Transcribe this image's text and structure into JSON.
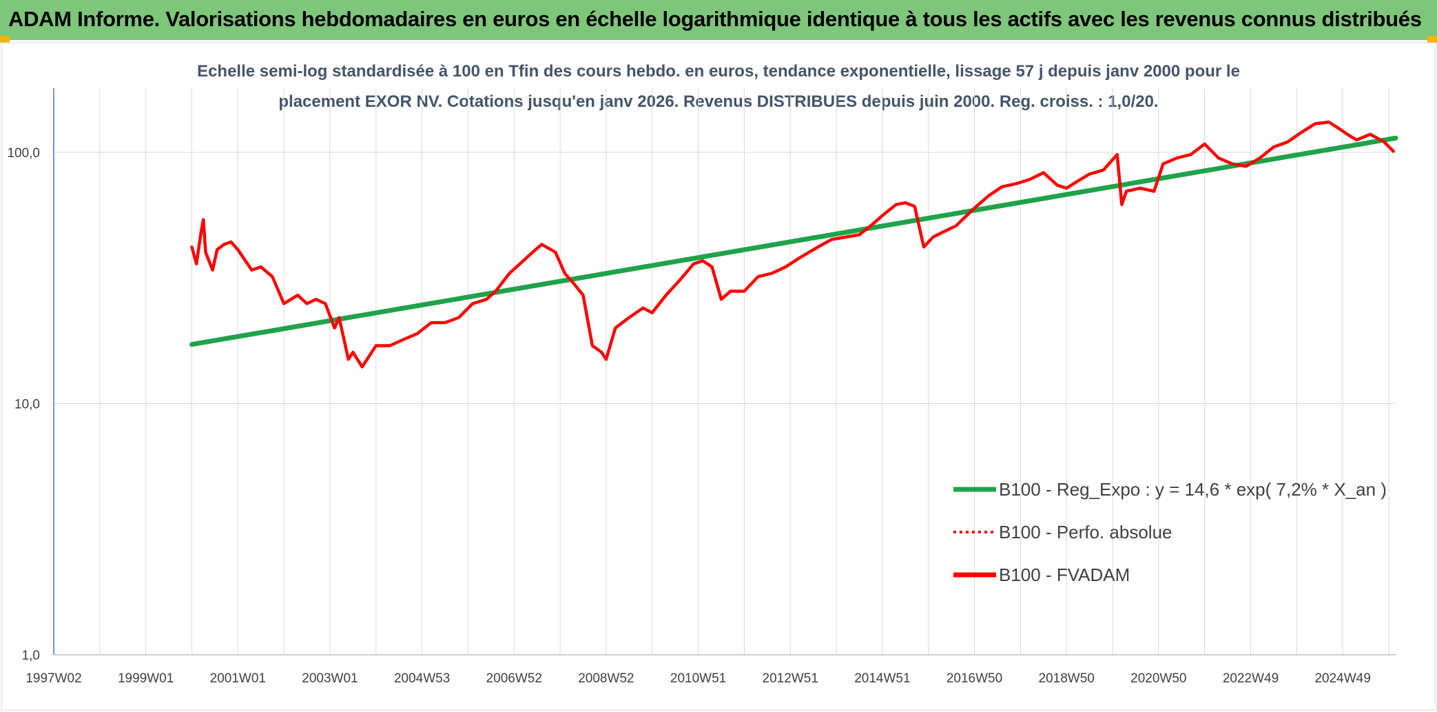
{
  "header": {
    "title": "ADAM Informe. Valorisations hebdomadaires en euros en échelle logarithmique identique à tous les actifs avec les revenus connus distribués"
  },
  "chart_data": {
    "type": "line",
    "title": "Echelle semi-log standardisée à 100 en Tfin des cours hebdo. en euros, tendance exponentielle, lissage 57 j depuis janv 2000 pour le",
    "subtitle": "placement EXOR NV. Cotations jusqu'en janv 2026. Revenus DISTRIBUES depuis juin 2000. Reg. croiss. : 1,0/20.",
    "xlabel": "",
    "ylabel": "",
    "y_scale": "log",
    "ylim": [
      1,
      180
    ],
    "xlim": [
      1997.0,
      2026.15
    ],
    "grid": true,
    "legend_position": "bottom-right",
    "y_ticks": [
      {
        "value": 1,
        "label": "1,0"
      },
      {
        "value": 10,
        "label": "10,0"
      },
      {
        "value": 100,
        "label": "100,0"
      }
    ],
    "x_ticks": [
      {
        "value": 1997.0,
        "label": "1997W02"
      },
      {
        "value": 1999.0,
        "label": "1999W01"
      },
      {
        "value": 2001.0,
        "label": "2001W01"
      },
      {
        "value": 2003.0,
        "label": "2003W01"
      },
      {
        "value": 2005.0,
        "label": "2004W53"
      },
      {
        "value": 2007.0,
        "label": "2006W52"
      },
      {
        "value": 2009.0,
        "label": "2008W52"
      },
      {
        "value": 2011.0,
        "label": "2010W51"
      },
      {
        "value": 2013.0,
        "label": "2012W51"
      },
      {
        "value": 2015.0,
        "label": "2014W51"
      },
      {
        "value": 2017.0,
        "label": "2016W50"
      },
      {
        "value": 2019.0,
        "label": "2018W50"
      },
      {
        "value": 2021.0,
        "label": "2020W50"
      },
      {
        "value": 2023.0,
        "label": "2022W49"
      },
      {
        "value": 2025.0,
        "label": "2024W49"
      }
    ],
    "series": [
      {
        "name": "B100 - Reg_Expo : y = 14,6 * exp( 7,2% *  X_an )",
        "color": "#1fa34a",
        "style": "solid",
        "x": [
          2000.0,
          2026.15
        ],
        "values": [
          17.2,
          114
        ]
      },
      {
        "name": "B100 - Perfo. absolue",
        "color": "#ff0000",
        "style": "dotted",
        "x": [],
        "values": []
      },
      {
        "name": "B100 - FVADAM",
        "color": "#ff0000",
        "style": "solid",
        "x": [
          2000.0,
          2000.1,
          2000.2,
          2000.25,
          2000.3,
          2000.45,
          2000.55,
          2000.7,
          2000.85,
          2001.0,
          2001.3,
          2001.5,
          2001.75,
          2002.0,
          2002.3,
          2002.5,
          2002.7,
          2002.9,
          2003.1,
          2003.2,
          2003.4,
          2003.5,
          2003.7,
          2004.0,
          2004.3,
          2004.6,
          2004.9,
          2005.2,
          2005.5,
          2005.8,
          2006.1,
          2006.4,
          2006.6,
          2006.9,
          2007.2,
          2007.4,
          2007.6,
          2007.9,
          2008.1,
          2008.3,
          2008.5,
          2008.7,
          2008.9,
          2009.0,
          2009.2,
          2009.5,
          2009.8,
          2010.0,
          2010.3,
          2010.6,
          2010.9,
          2011.1,
          2011.3,
          2011.5,
          2011.7,
          2012.0,
          2012.3,
          2012.6,
          2012.9,
          2013.2,
          2013.6,
          2013.9,
          2014.2,
          2014.5,
          2014.8,
          2015.0,
          2015.3,
          2015.5,
          2015.7,
          2015.9,
          2016.1,
          2016.3,
          2016.6,
          2017.0,
          2017.3,
          2017.6,
          2017.9,
          2018.2,
          2018.5,
          2018.8,
          2019.0,
          2019.2,
          2019.5,
          2019.8,
          2020.1,
          2020.2,
          2020.3,
          2020.6,
          2020.9,
          2021.1,
          2021.4,
          2021.7,
          2022.0,
          2022.3,
          2022.6,
          2022.9,
          2023.2,
          2023.5,
          2023.8,
          2024.1,
          2024.4,
          2024.7,
          2024.9,
          2025.1,
          2025.3,
          2025.6,
          2025.9,
          2026.1
        ],
        "values": [
          42,
          36,
          48,
          54,
          40,
          34,
          41,
          43,
          44,
          41,
          34,
          35,
          32,
          25,
          27,
          25,
          26,
          25,
          20,
          22,
          15,
          16,
          14,
          17,
          17,
          18,
          19,
          21,
          21,
          22,
          25,
          26,
          28,
          33,
          37,
          40,
          43,
          40,
          33,
          30,
          27,
          17,
          16,
          15,
          20,
          22,
          24,
          23,
          27,
          31,
          36,
          37,
          35,
          26,
          28,
          28,
          32,
          33,
          35,
          38,
          42,
          45,
          46,
          47,
          52,
          56,
          62,
          63,
          61,
          42,
          46,
          48,
          51,
          60,
          67,
          73,
          75,
          78,
          83,
          74,
          72,
          76,
          82,
          85,
          98,
          62,
          70,
          72,
          70,
          90,
          95,
          98,
          108,
          95,
          90,
          88,
          95,
          105,
          110,
          120,
          130,
          132,
          125,
          118,
          112,
          118,
          110,
          101
        ]
      }
    ]
  },
  "legend": {
    "items": [
      {
        "label": "B100 - Reg_Expo : y = 14,6 * exp( 7,2% *  X_an )",
        "color": "#1fa34a",
        "style": "solid"
      },
      {
        "label": "B100 - Perfo. absolue",
        "color": "#ff0000",
        "style": "dotted"
      },
      {
        "label": "B100 - FVADAM",
        "color": "#ff0000",
        "style": "solid"
      }
    ]
  },
  "colors": {
    "banner": "#7dc67a",
    "corner": "#f4b400",
    "grid": "#d9d9d9",
    "axis": "#4472c4",
    "title_text": "#44546a"
  }
}
